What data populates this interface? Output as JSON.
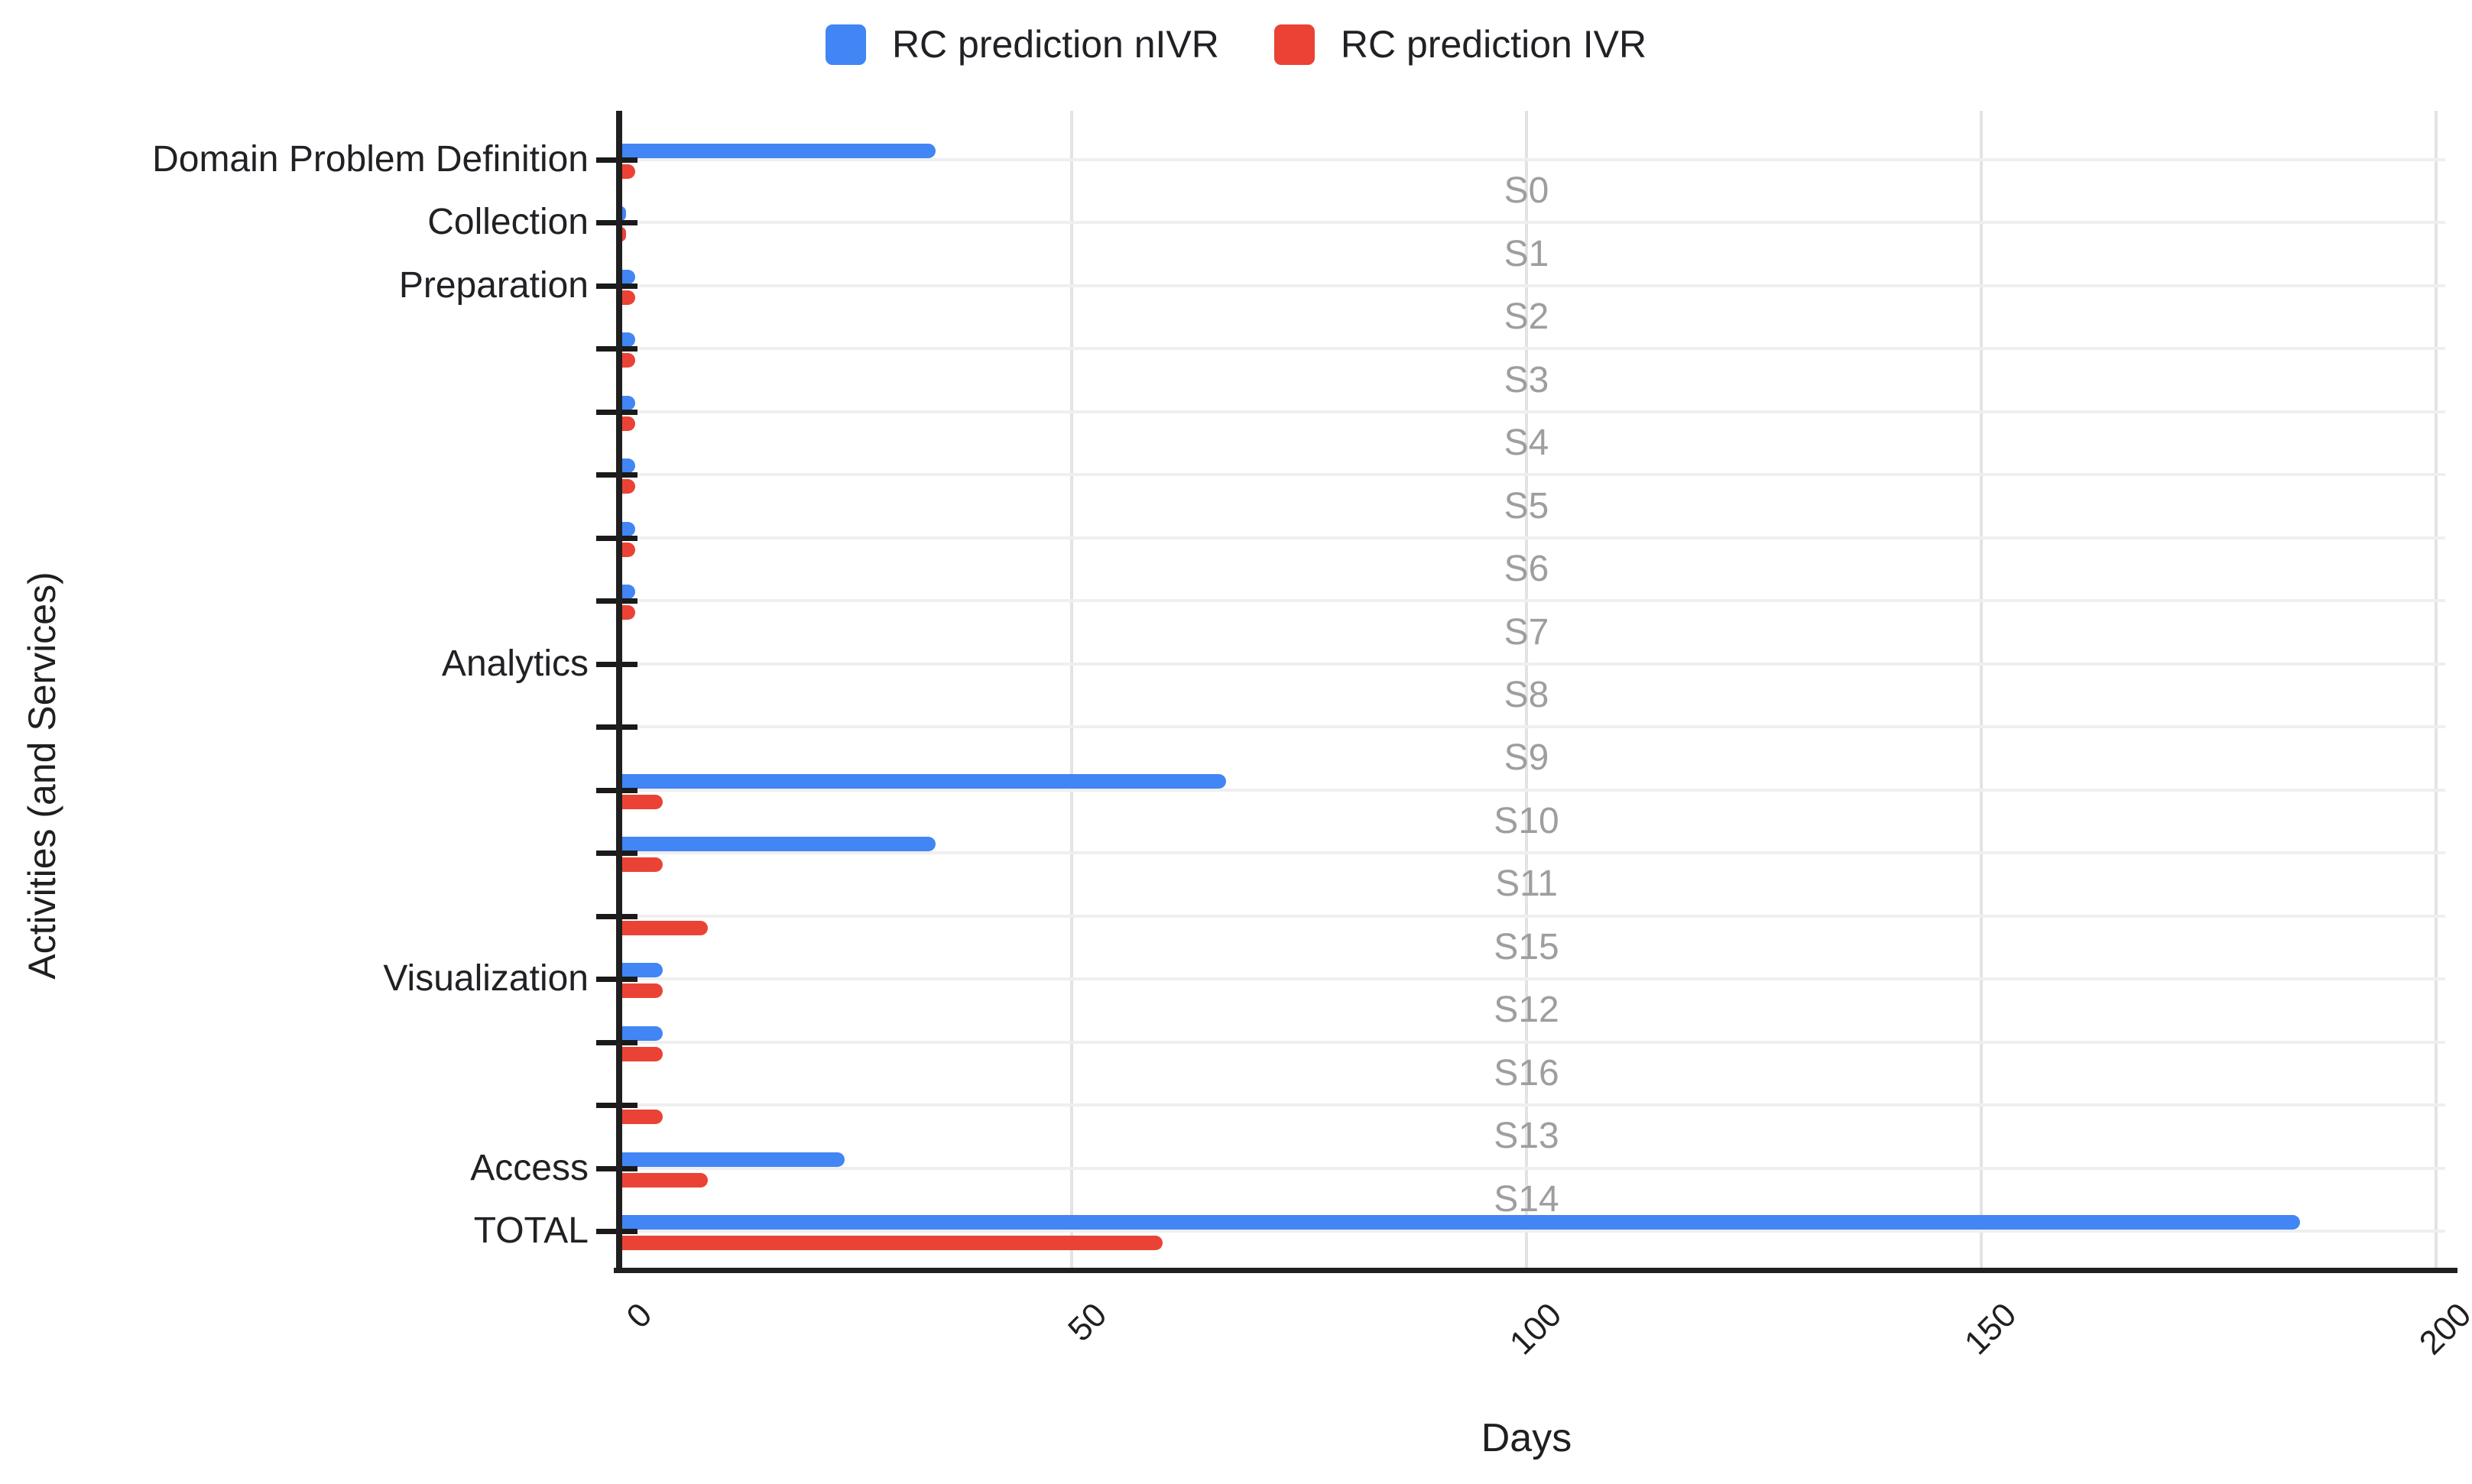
{
  "legend": {
    "items": [
      {
        "label": "RC prediction nIVR",
        "color": "#4285f4"
      },
      {
        "label": "RC prediction IVR",
        "color": "#ea4335"
      }
    ]
  },
  "colors": {
    "series_nivr": "#4285f4",
    "series_ivr": "#ea4335",
    "gridline": "#efefef",
    "vertical_gridline": "#e3e3e3",
    "axis": "#1f1f1f",
    "service_label": "#9e9e9e",
    "text": "#202124"
  },
  "chart_data": {
    "type": "bar",
    "orientation": "horizontal",
    "title": "",
    "xlabel": "Days",
    "ylabel": "Activities (and Services)",
    "xlim": [
      0,
      200
    ],
    "xticks": [
      "0",
      "50",
      "100",
      "150",
      "200"
    ],
    "grid": true,
    "legend_position": "top",
    "categories": [
      "Domain Problem Definition",
      "Collection",
      "Preparation",
      "",
      "",
      "",
      "",
      "",
      "Analytics",
      "",
      "",
      "",
      "",
      "Visualization",
      "",
      "",
      "Access",
      "TOTAL"
    ],
    "gap_labels": [
      "S0",
      "S1",
      "S2",
      "S3",
      "S4",
      "S5",
      "S6",
      "S7",
      "S8",
      "S9",
      "S10",
      "S11",
      "S15",
      "S12",
      "S16",
      "S13",
      "S14"
    ],
    "series": [
      {
        "name": "RC prediction nIVR",
        "color": "#4285f4",
        "values": [
          35,
          1,
          2,
          2,
          2,
          2,
          2,
          2,
          0,
          0,
          67,
          35,
          0,
          5,
          5,
          0,
          25,
          185
        ]
      },
      {
        "name": "RC prediction IVR",
        "color": "#ea4335",
        "values": [
          2,
          1,
          2,
          2,
          2,
          2,
          2,
          2,
          0,
          0,
          5,
          5,
          10,
          5,
          5,
          5,
          10,
          60
        ]
      }
    ]
  }
}
